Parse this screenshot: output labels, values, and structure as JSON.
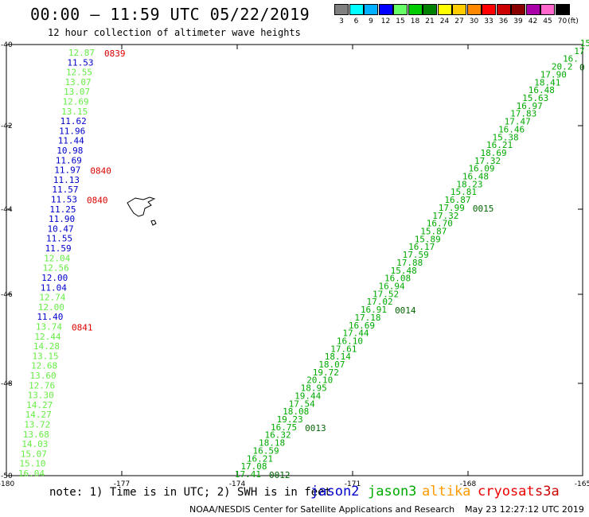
{
  "header": {
    "title": "00:00 – 11:59 UTC 05/22/2019",
    "subtitle": "12 hour collection of altimeter wave heights"
  },
  "color_scale": {
    "unit": "(ft)",
    "bins": [
      {
        "label": "3",
        "color": "#808080"
      },
      {
        "label": "6",
        "color": "#00ffff"
      },
      {
        "label": "9",
        "color": "#00b0ff"
      },
      {
        "label": "12",
        "color": "#0000ff"
      },
      {
        "label": "15",
        "color": "#66ff66"
      },
      {
        "label": "18",
        "color": "#00cc00"
      },
      {
        "label": "21",
        "color": "#008000"
      },
      {
        "label": "24",
        "color": "#ffff00"
      },
      {
        "label": "27",
        "color": "#ffcc00"
      },
      {
        "label": "30",
        "color": "#ff8800"
      },
      {
        "label": "33",
        "color": "#ff0000"
      },
      {
        "label": "36",
        "color": "#cc0000"
      },
      {
        "label": "39",
        "color": "#880000"
      },
      {
        "label": "42",
        "color": "#aa00aa"
      },
      {
        "label": "45",
        "color": "#ff66cc"
      },
      {
        "label": "70",
        "color": "#000000"
      }
    ]
  },
  "map": {
    "lon_ticks": [
      "-180",
      "-177",
      "-174",
      "-171",
      "-168",
      "-165"
    ],
    "lat_ticks": [
      "-40",
      "-42",
      "-44",
      "-46",
      "-48",
      "-50"
    ],
    "lon_range": [
      -180,
      -165
    ],
    "lat_range": [
      -50,
      -40
    ]
  },
  "track_west": {
    "values": [
      {
        "v": "12.87",
        "c": "#66ee44"
      },
      {
        "v": "11.53",
        "c": "#0000cc"
      },
      {
        "v": "12.55",
        "c": "#66ee44"
      },
      {
        "v": "13.07",
        "c": "#66ee44"
      },
      {
        "v": "13.07",
        "c": "#66ee44"
      },
      {
        "v": "12.69",
        "c": "#66ee44"
      },
      {
        "v": "13.15",
        "c": "#66ee44"
      },
      {
        "v": "11.62",
        "c": "#0000cc"
      },
      {
        "v": "11.96",
        "c": "#0000cc"
      },
      {
        "v": "11.44",
        "c": "#0000cc"
      },
      {
        "v": "10.98",
        "c": "#0000cc"
      },
      {
        "v": "11.69",
        "c": "#0000cc"
      },
      {
        "v": "11.97",
        "c": "#0000cc"
      },
      {
        "v": "11.13",
        "c": "#0000cc"
      },
      {
        "v": "11.57",
        "c": "#0000cc"
      },
      {
        "v": "11.53",
        "c": "#0000cc"
      },
      {
        "v": "11.25",
        "c": "#0000cc"
      },
      {
        "v": "11.90",
        "c": "#0000cc"
      },
      {
        "v": "10.47",
        "c": "#0000cc"
      },
      {
        "v": "11.55",
        "c": "#0000cc"
      },
      {
        "v": "11.59",
        "c": "#0000cc"
      },
      {
        "v": "12.04",
        "c": "#66ee44"
      },
      {
        "v": "12.56",
        "c": "#66ee44"
      },
      {
        "v": "12.00",
        "c": "#0000cc"
      },
      {
        "v": "11.04",
        "c": "#0000cc"
      },
      {
        "v": "12.74",
        "c": "#66ee44"
      },
      {
        "v": "12.00",
        "c": "#66ee44"
      },
      {
        "v": "11.40",
        "c": "#0000cc"
      },
      {
        "v": "13.74",
        "c": "#66ee44"
      },
      {
        "v": "12.44",
        "c": "#66ee44"
      },
      {
        "v": "14.28",
        "c": "#66ee44"
      },
      {
        "v": "13.15",
        "c": "#66ee44"
      },
      {
        "v": "12.68",
        "c": "#66ee44"
      },
      {
        "v": "13.60",
        "c": "#66ee44"
      },
      {
        "v": "12.76",
        "c": "#66ee44"
      },
      {
        "v": "13.30",
        "c": "#66ee44"
      },
      {
        "v": "14.27",
        "c": "#66ee44"
      },
      {
        "v": "14.27",
        "c": "#66ee44"
      },
      {
        "v": "13.72",
        "c": "#66ee44"
      },
      {
        "v": "13.68",
        "c": "#66ee44"
      },
      {
        "v": "14.03",
        "c": "#66ee44"
      },
      {
        "v": "15.07",
        "c": "#66ee44"
      },
      {
        "v": "15.10",
        "c": "#66ee44"
      },
      {
        "v": "16.04",
        "c": "#66ee44"
      }
    ],
    "times": [
      {
        "t": "0839",
        "row": 0
      },
      {
        "t": "0840",
        "row": 12
      },
      {
        "t": "0840",
        "row": 15
      },
      {
        "t": "0841",
        "row": 28
      }
    ]
  },
  "track_east": {
    "values": [
      "15",
      "17",
      "16.",
      "20.2",
      "17.90",
      "18.41",
      "16.48",
      "15.63",
      "16.97",
      "17.83",
      "17.47",
      "16.46",
      "15.38",
      "16.21",
      "18.69",
      "17.32",
      "16.09",
      "16.48",
      "18.23",
      "15.81",
      "16.87",
      "17.99",
      "17.32",
      "16.70",
      "15.87",
      "15.89",
      "16.17",
      "17.59",
      "17.88",
      "15.48",
      "16.08",
      "16.94",
      "17.52",
      "17.02",
      "16.91",
      "17.18",
      "16.69",
      "17.44",
      "16.10",
      "17.61",
      "18.14",
      "18.07",
      "19.72",
      "20.10",
      "18.95",
      "19.44",
      "17.54",
      "18.08",
      "19.23",
      "16.75",
      "16.32",
      "18.18",
      "16.59",
      "16.21",
      "17.08",
      "17.41"
    ],
    "times": [
      {
        "t": "0",
        "row": 3
      },
      {
        "t": "0015",
        "row": 21
      },
      {
        "t": "0014",
        "row": 34
      },
      {
        "t": "0013",
        "row": 49
      },
      {
        "t": "0012",
        "row": 55
      }
    ]
  },
  "footer": {
    "note": "note: 1) Time is in UTC; 2) SWH is in feet",
    "satellites": [
      {
        "name": "jason2",
        "color": "#0000cc"
      },
      {
        "name": "jason3",
        "color": "#00aa00"
      },
      {
        "name": "altika",
        "color": "#ff9900"
      },
      {
        "name": "cryosat",
        "color": "#ee0000"
      },
      {
        "name": "s3a",
        "color": "#cc0000"
      }
    ],
    "credit": "NOAA/NESDIS Center for Satellite Applications and Research",
    "timestamp": "May 23 12:27:12 UTC 2019"
  }
}
